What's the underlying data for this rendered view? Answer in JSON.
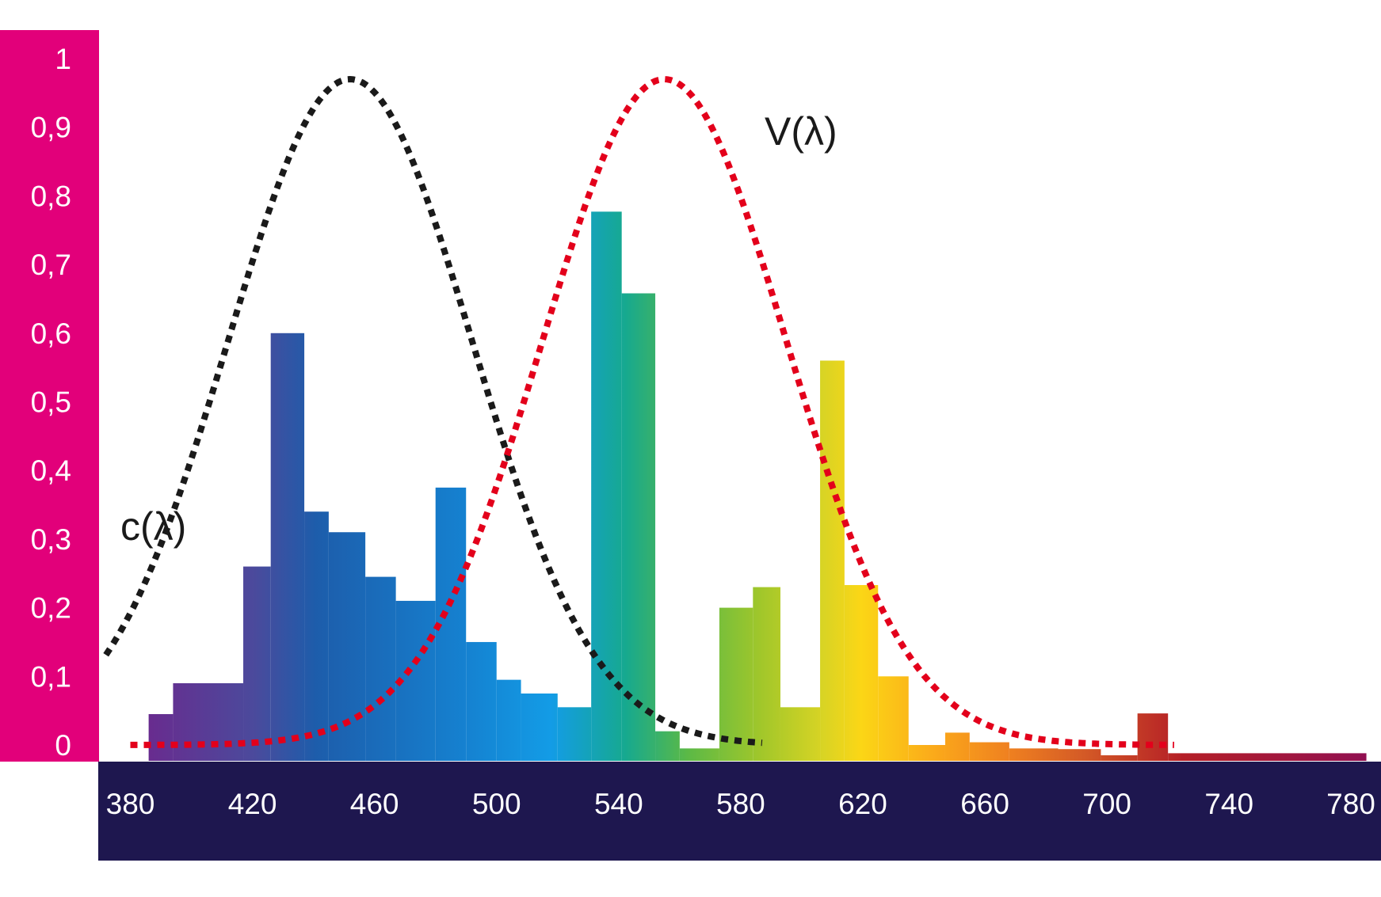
{
  "chart_data": {
    "type": "bar",
    "title": "",
    "xlabel": "",
    "ylabel": "",
    "xlim": [
      380,
      780
    ],
    "ylim": [
      0,
      1
    ],
    "x_ticks": [
      "380",
      "420",
      "460",
      "500",
      "540",
      "580",
      "620",
      "660",
      "700",
      "740",
      "780"
    ],
    "y_ticks": [
      "0",
      "0,1",
      "0,2",
      "0,3",
      "0,4",
      "0,5",
      "0,6",
      "0,7",
      "0,8",
      "0,9",
      "1"
    ],
    "bars": [
      {
        "from": 386,
        "to": 394,
        "value": 0.045
      },
      {
        "from": 394,
        "to": 417,
        "value": 0.09
      },
      {
        "from": 417,
        "to": 426,
        "value": 0.26
      },
      {
        "from": 426,
        "to": 437,
        "value": 0.6
      },
      {
        "from": 437,
        "to": 445,
        "value": 0.34
      },
      {
        "from": 445,
        "to": 457,
        "value": 0.31
      },
      {
        "from": 457,
        "to": 467,
        "value": 0.245
      },
      {
        "from": 467,
        "to": 480,
        "value": 0.21
      },
      {
        "from": 480,
        "to": 490,
        "value": 0.375
      },
      {
        "from": 490,
        "to": 500,
        "value": 0.15
      },
      {
        "from": 500,
        "to": 508,
        "value": 0.095
      },
      {
        "from": 508,
        "to": 520,
        "value": 0.075
      },
      {
        "from": 520,
        "to": 531,
        "value": 0.055
      },
      {
        "from": 531,
        "to": 541,
        "value": 0.777
      },
      {
        "from": 541,
        "to": 552,
        "value": 0.658
      },
      {
        "from": 552,
        "to": 560,
        "value": 0.02
      },
      {
        "from": 560,
        "to": 573,
        "value": -0.005
      },
      {
        "from": 573,
        "to": 584,
        "value": 0.2
      },
      {
        "from": 584,
        "to": 593,
        "value": 0.23
      },
      {
        "from": 593,
        "to": 606,
        "value": 0.055
      },
      {
        "from": 606,
        "to": 614,
        "value": 0.56
      },
      {
        "from": 614,
        "to": 625,
        "value": 0.233
      },
      {
        "from": 625,
        "to": 635,
        "value": 0.1
      },
      {
        "from": 635,
        "to": 647,
        "value": 0.0
      },
      {
        "from": 647,
        "to": 655,
        "value": 0.018
      },
      {
        "from": 655,
        "to": 668,
        "value": 0.004
      },
      {
        "from": 668,
        "to": 684,
        "value": -0.005
      },
      {
        "from": 684,
        "to": 698,
        "value": -0.006
      },
      {
        "from": 698,
        "to": 710,
        "value": -0.015
      },
      {
        "from": 710,
        "to": 720,
        "value": 0.046
      },
      {
        "from": 720,
        "to": 785,
        "value": -0.012
      }
    ],
    "series": [
      {
        "name": "c(λ)",
        "type": "line",
        "style": "dotted",
        "color": "#1a1a1a",
        "peak_nm": 452,
        "peak_value": 0.97,
        "sigma_nm": 40,
        "range": [
          372,
          587
        ]
      },
      {
        "name": "V(λ)",
        "type": "line",
        "style": "dotted",
        "color": "#e3001b",
        "peak_nm": 555,
        "peak_value": 0.97,
        "sigma_nm": 40,
        "range": [
          380,
          722
        ]
      }
    ],
    "labels": {
      "c": "c(λ)",
      "v": "V(λ)"
    },
    "grid": false,
    "legend": "none"
  },
  "colors": {
    "y_axis_bg": "#e2007a",
    "x_axis_bg": "#1e174f",
    "c_curve": "#1a1a1a",
    "v_curve": "#e3001b"
  }
}
